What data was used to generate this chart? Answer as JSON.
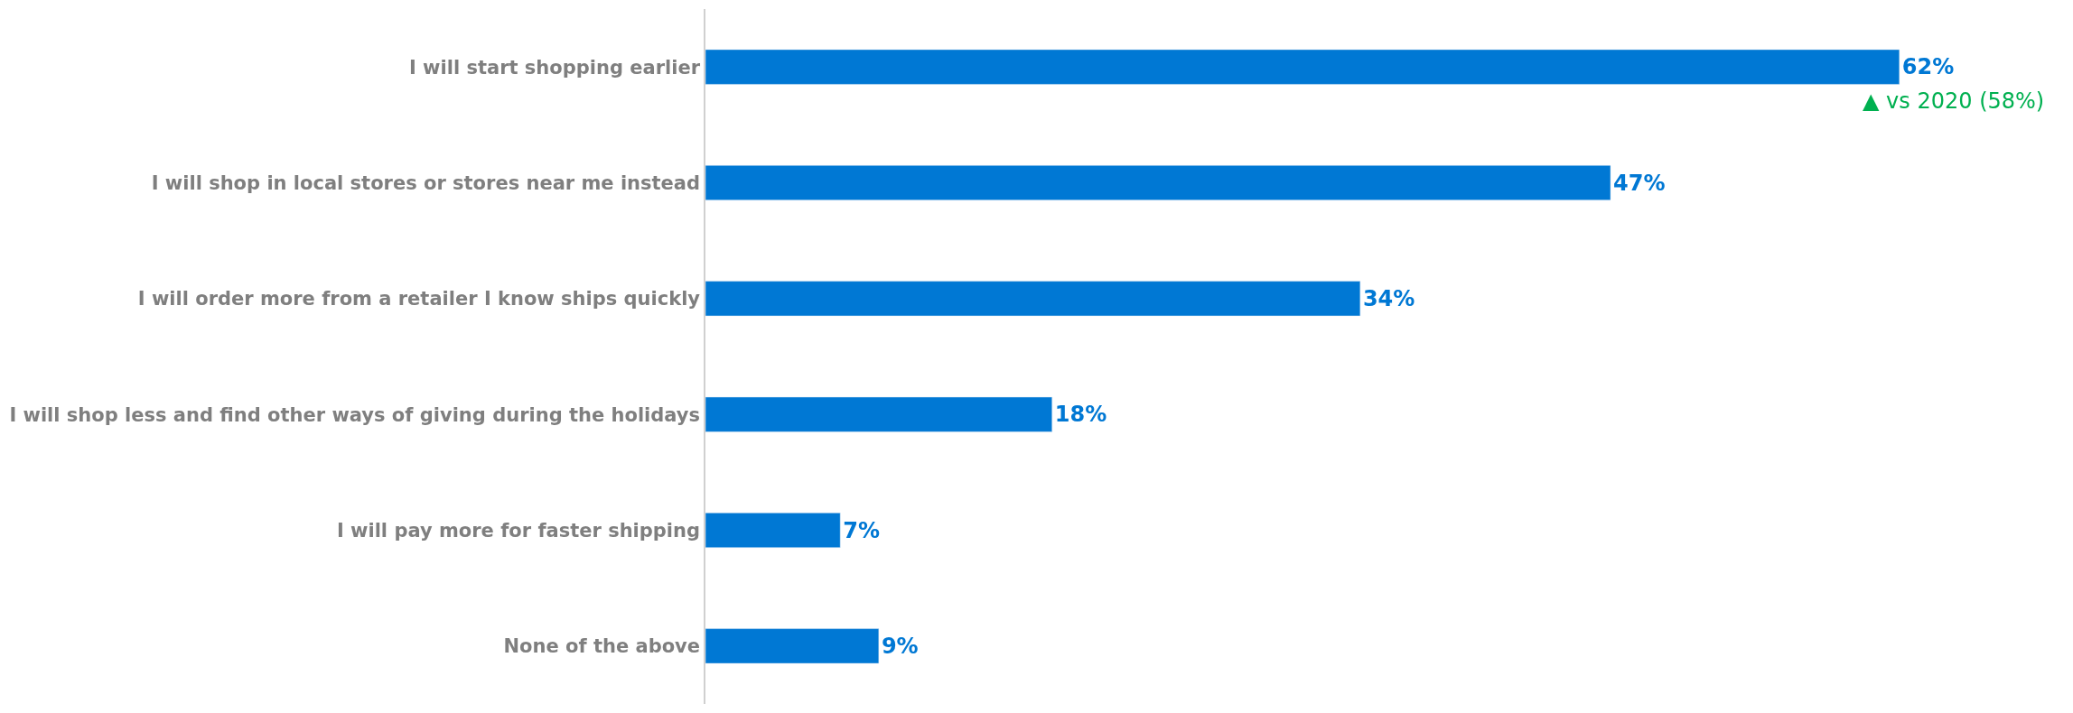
{
  "chart_data": {
    "type": "bar",
    "orientation": "horizontal",
    "categories": [
      "I will start shopping earlier",
      "I will shop in local stores or stores near me instead",
      "I will order more from a retailer I know ships quickly",
      "I will shop less and find other ways of giving during the holidays",
      "I will pay more for faster shipping",
      "None of the above"
    ],
    "values": [
      62,
      47,
      34,
      18,
      7,
      9
    ],
    "value_labels": [
      "62%",
      "47%",
      "34%",
      "18%",
      "7%",
      "9%"
    ],
    "color": "#0078d4",
    "annotations": [
      {
        "text": "▲ vs 2020 (58%)",
        "x": 62,
        "y": "I will start shopping earlier"
      }
    ],
    "legend": false
  }
}
